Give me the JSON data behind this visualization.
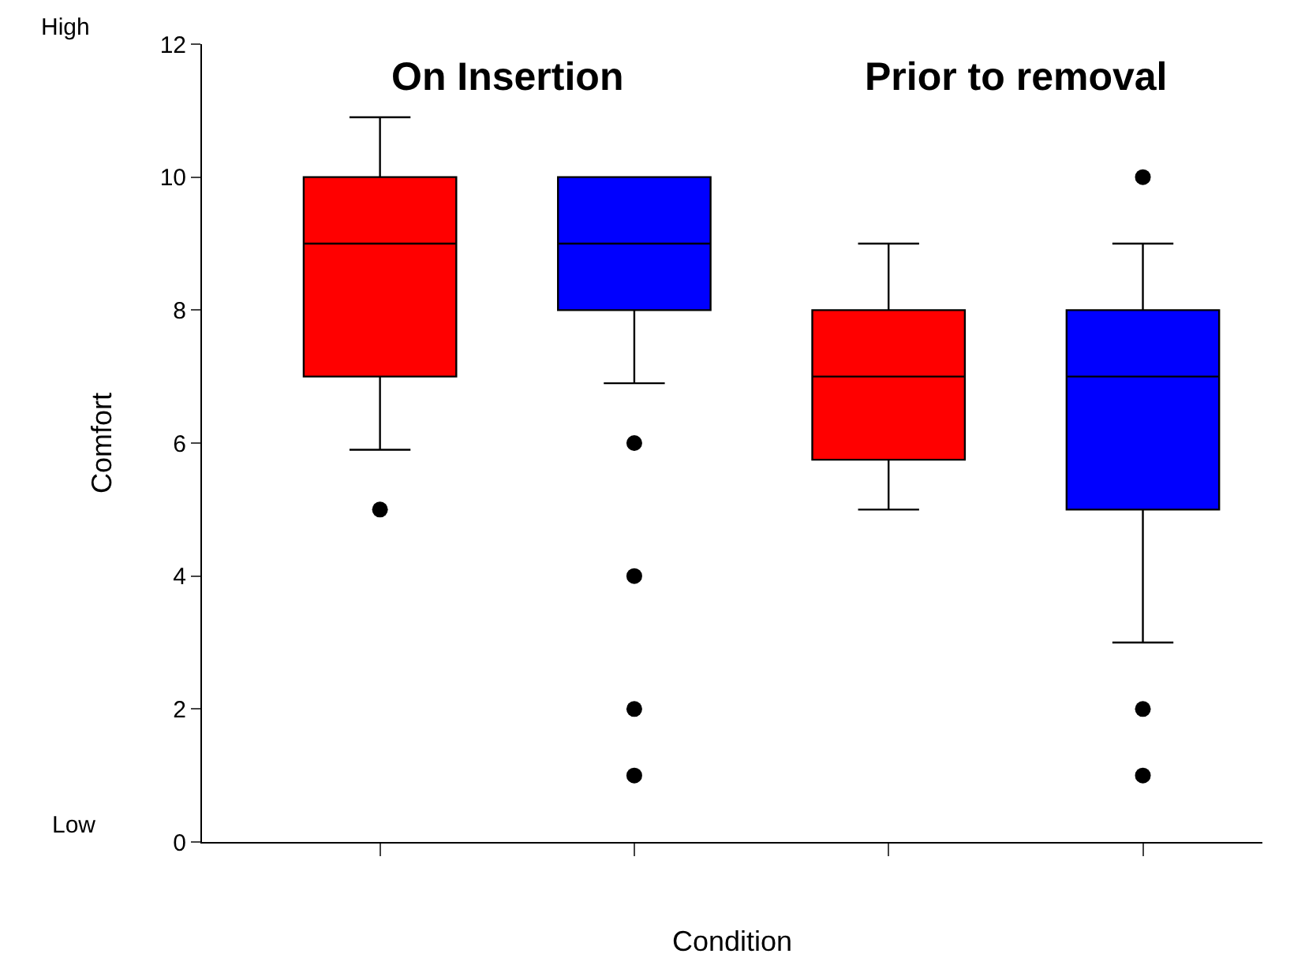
{
  "chart_data": {
    "type": "box",
    "xlabel": "Condition",
    "ylabel": "Comfort",
    "categories": [
      null,
      null,
      null,
      null
    ],
    "colors": [
      "#ff0000",
      "#0000ff",
      "#ff0000",
      "#0000ff"
    ],
    "boxes": [
      {
        "low": 5.9,
        "q1": 7,
        "median": 9,
        "q3": 10,
        "high": 10.9,
        "outliers": [
          5
        ]
      },
      {
        "low": 6.9,
        "q1": 8,
        "median": 9,
        "q3": 10,
        "high": 10,
        "outliers": [
          6,
          4,
          2,
          1
        ]
      },
      {
        "low": 5,
        "q1": 5.75,
        "median": 7,
        "q3": 8,
        "high": 9
      },
      {
        "low": 3,
        "q1": 5,
        "median": 7,
        "q3": 8,
        "high": 9,
        "outliers": [
          10,
          2,
          1
        ]
      }
    ],
    "ylim": [
      0,
      12
    ],
    "yticks": [
      0,
      2,
      4,
      6,
      8,
      10,
      12
    ],
    "annotations": [
      "High",
      "Low",
      "On Insertion",
      "Prior to removal"
    ]
  }
}
